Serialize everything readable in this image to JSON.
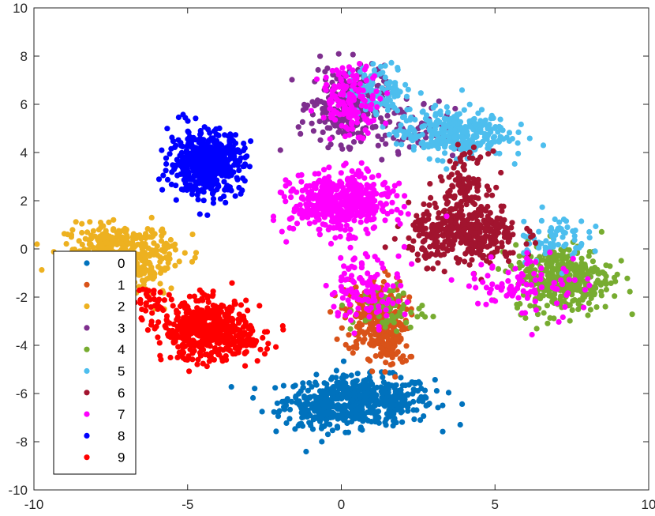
{
  "chart_data": {
    "type": "scatter",
    "title": "",
    "xlabel": "",
    "ylabel": "",
    "xlim": [
      -10,
      10
    ],
    "ylim": [
      -10,
      10
    ],
    "xticks": [
      "-10",
      "-5",
      "0",
      "5",
      "10"
    ],
    "yticks": [
      "10",
      "8",
      "6",
      "4",
      "2",
      "0",
      "-2",
      "-4",
      "-6",
      "-8",
      "-10"
    ],
    "grid": false,
    "legend_position": "bottom-left",
    "series": [
      {
        "name": "0",
        "color": "#0072BD",
        "clusters": [
          {
            "cx": 0.6,
            "cy": -6.3,
            "sx": 1.2,
            "sy": 0.5,
            "n": 520
          },
          {
            "cx": -0.8,
            "cy": -6.8,
            "sx": 0.6,
            "sy": 0.4,
            "n": 80
          }
        ]
      },
      {
        "name": "1",
        "color": "#D95319",
        "clusters": [
          {
            "cx": 1.1,
            "cy": -2.8,
            "sx": 0.5,
            "sy": 0.8,
            "n": 260
          },
          {
            "cx": 1.6,
            "cy": -4.0,
            "sx": 0.3,
            "sy": 0.5,
            "n": 80
          }
        ]
      },
      {
        "name": "2",
        "color": "#EDB120",
        "clusters": [
          {
            "cx": -7.2,
            "cy": 0.0,
            "sx": 0.9,
            "sy": 0.5,
            "n": 300
          },
          {
            "cx": -6.2,
            "cy": -1.0,
            "sx": 0.4,
            "sy": 0.6,
            "n": 60
          }
        ]
      },
      {
        "name": "3",
        "color": "#7E2F8E",
        "clusters": [
          {
            "cx": 0.2,
            "cy": 6.0,
            "sx": 0.6,
            "sy": 0.8,
            "n": 260
          },
          {
            "cx": 2.0,
            "cy": 5.0,
            "sx": 1.2,
            "sy": 0.6,
            "n": 80
          }
        ]
      },
      {
        "name": "4",
        "color": "#77AC30",
        "clusters": [
          {
            "cx": 7.2,
            "cy": -1.2,
            "sx": 0.8,
            "sy": 0.7,
            "n": 380
          },
          {
            "cx": 1.5,
            "cy": -2.5,
            "sx": 0.6,
            "sy": 0.5,
            "n": 60
          }
        ]
      },
      {
        "name": "5",
        "color": "#4DBEEE",
        "clusters": [
          {
            "cx": 3.6,
            "cy": 4.8,
            "sx": 0.9,
            "sy": 0.5,
            "n": 320
          },
          {
            "cx": 1.3,
            "cy": 6.6,
            "sx": 0.5,
            "sy": 0.5,
            "n": 110
          },
          {
            "cx": 6.8,
            "cy": 0.5,
            "sx": 0.6,
            "sy": 0.5,
            "n": 70
          }
        ]
      },
      {
        "name": "6",
        "color": "#A2142F",
        "clusters": [
          {
            "cx": 4.0,
            "cy": 0.6,
            "sx": 0.9,
            "sy": 0.6,
            "n": 400
          },
          {
            "cx": 4.0,
            "cy": 2.8,
            "sx": 0.4,
            "sy": 0.6,
            "n": 100
          }
        ]
      },
      {
        "name": "7",
        "color": "#FF00FF",
        "clusters": [
          {
            "cx": 0.0,
            "cy": 1.9,
            "sx": 0.8,
            "sy": 0.6,
            "n": 520
          },
          {
            "cx": 0.3,
            "cy": 6.2,
            "sx": 0.5,
            "sy": 0.7,
            "n": 140
          },
          {
            "cx": 0.8,
            "cy": -1.6,
            "sx": 0.6,
            "sy": 0.7,
            "n": 110
          },
          {
            "cx": 6.0,
            "cy": -1.5,
            "sx": 1.0,
            "sy": 0.7,
            "n": 90
          }
        ]
      },
      {
        "name": "8",
        "color": "#0000FF",
        "clusters": [
          {
            "cx": -4.4,
            "cy": 3.6,
            "sx": 0.6,
            "sy": 0.65,
            "n": 520
          }
        ]
      },
      {
        "name": "9",
        "color": "#FF0000",
        "clusters": [
          {
            "cx": -4.4,
            "cy": -3.4,
            "sx": 0.7,
            "sy": 0.6,
            "n": 520
          },
          {
            "cx": -3.0,
            "cy": -3.9,
            "sx": 0.4,
            "sy": 0.3,
            "n": 40
          },
          {
            "cx": -6.2,
            "cy": -2.0,
            "sx": 0.3,
            "sy": 0.3,
            "n": 30
          }
        ]
      }
    ]
  }
}
